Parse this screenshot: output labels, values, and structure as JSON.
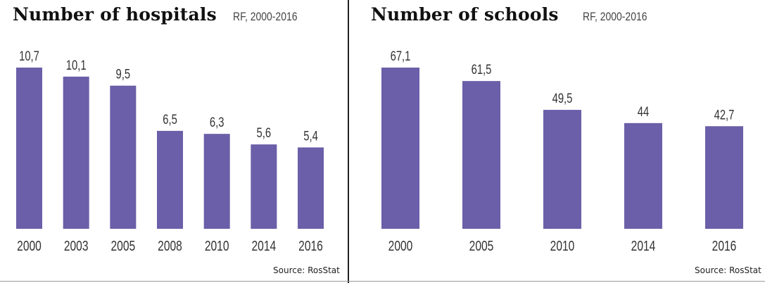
{
  "colors": {
    "bar": "#6a5fa8",
    "text": "#333333"
  },
  "charts": [
    {
      "title": "Number of hospitals",
      "subtitle": "RF, 2000-2016",
      "source": "Source: RosStat"
    },
    {
      "title": "Number of schools",
      "subtitle": "RF, 2000-2016",
      "source": "Source: RosStat"
    }
  ],
  "chart_data": [
    {
      "type": "bar",
      "title": "Number of hospitals",
      "subtitle": "RF, 2000-2016",
      "categories": [
        "2000",
        "2003",
        "2005",
        "2008",
        "2010",
        "2014",
        "2016"
      ],
      "values": [
        10.7,
        10.1,
        9.5,
        6.5,
        6.3,
        5.6,
        5.4
      ],
      "value_labels": [
        "10,7",
        "10,1",
        "9,5",
        "6,5",
        "6,3",
        "5,6",
        "5,4"
      ],
      "ylim": [
        0,
        10.7
      ],
      "grid": false,
      "legend": "none"
    },
    {
      "type": "bar",
      "title": "Number of schools",
      "subtitle": "RF, 2000-2016",
      "categories": [
        "2000",
        "2005",
        "2010",
        "2014",
        "2016"
      ],
      "values": [
        67.1,
        61.5,
        49.5,
        44,
        42.7
      ],
      "value_labels": [
        "67,1",
        "61,5",
        "49,5",
        "44",
        "42,7"
      ],
      "ylim": [
        0,
        67.1
      ],
      "grid": false,
      "legend": "none"
    }
  ]
}
